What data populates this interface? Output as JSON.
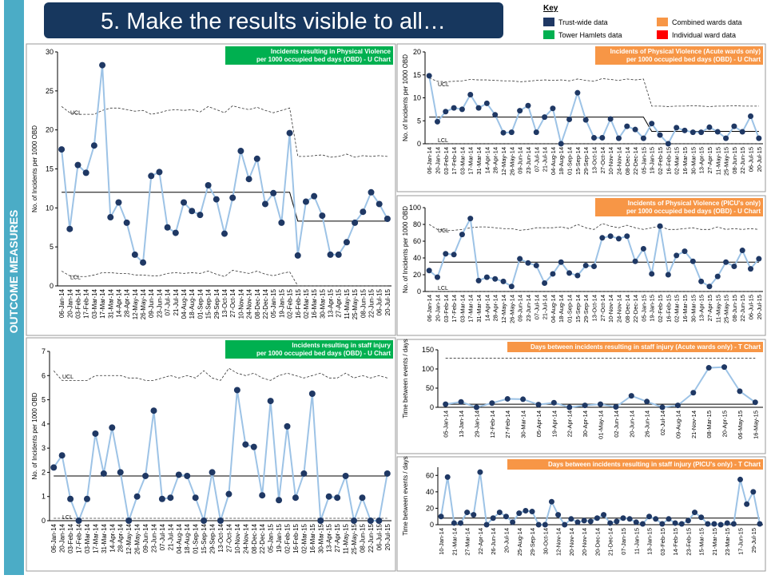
{
  "header": {
    "title": "5.  Make the results visible to all…",
    "side_label": "OUTCOME MEASURES"
  },
  "key": {
    "title": "Key",
    "items": [
      {
        "label": "Trust-wide data",
        "color": "#1f3864"
      },
      {
        "label": "Tower Hamlets data",
        "color": "#00b050"
      },
      {
        "label": "Combined wards data",
        "color": "#f79646"
      },
      {
        "label": "Individual ward data",
        "color": "#ff0000"
      }
    ]
  },
  "chart_data": [
    {
      "type": "line",
      "title": [
        "Incidents resulting in Physical Violence",
        "per 1000 occupied bed days (OBD) - U Chart"
      ],
      "title_color": "#00b050",
      "ylabel": "No. of Incidents per 1000 OBD",
      "line_color": "#9dc3e6",
      "marker_color": "#1f3864",
      "ucl_label": "UCL",
      "lcl_label": "LCL",
      "categories": [
        "06-Jan-14",
        "20-Jan-14",
        "03-Feb-14",
        "17-Feb-14",
        "03-Mar-14",
        "17-Mar-14",
        "31-Mar-14",
        "14-Apr-14",
        "28-Apr-14",
        "12-May-14",
        "26-May-14",
        "09-Jun-14",
        "23-Jun-14",
        "07-Jul-14",
        "21-Jul-14",
        "04-Aug-14",
        "18-Aug-14",
        "01-Sep-14",
        "15-Sep-14",
        "29-Sep-14",
        "13-Oct-14",
        "27-Oct-14",
        "10-Nov-14",
        "24-Nov-14",
        "08-Dec-14",
        "22-Dec-14",
        "05-Jan-15",
        "19-Jan-15",
        "02-Feb-15",
        "16-Feb-15",
        "02-Mar-15",
        "16-Mar-15",
        "30-Mar-15",
        "13-Apr-15",
        "27-Apr-15",
        "11-May-15",
        "25-May-15",
        "08-Jun-15",
        "22-Jun-15",
        "06-Jul-15",
        "20-Jul-15"
      ],
      "values": [
        17.5,
        7.3,
        15.5,
        14.5,
        18,
        28.3,
        8.8,
        10.7,
        8.1,
        4,
        3,
        14.1,
        14.6,
        7.5,
        6.8,
        10.7,
        9.6,
        9.1,
        12.9,
        11.1,
        6.7,
        11.3,
        17.3,
        13.7,
        16.3,
        10.5,
        11.9,
        8.1,
        19.6,
        3.9,
        10.8,
        11.5,
        9,
        4,
        4,
        5.6,
        8.1,
        9.5,
        12,
        10.5,
        8.6
      ],
      "center": [
        12,
        12,
        12,
        12,
        12,
        12,
        12,
        12,
        12,
        12,
        12,
        12,
        12,
        12,
        12,
        12,
        12,
        12,
        12,
        12,
        12,
        12,
        12,
        12,
        12,
        12,
        12,
        12,
        12,
        8.3,
        8.3,
        8.3,
        8.3,
        8.3,
        8.3,
        8.3,
        8.3,
        8.3,
        8.3,
        8.3,
        8.3
      ],
      "ucl": [
        23,
        22.2,
        22,
        22,
        22,
        22.5,
        22.8,
        22.8,
        22.6,
        22.4,
        22.5,
        22,
        22.2,
        22.5,
        22.6,
        22.5,
        22.6,
        22.3,
        23,
        22.6,
        22.2,
        23.1,
        22.8,
        22.6,
        22.9,
        22.5,
        22.2,
        22.5,
        22.8,
        16.6,
        16.6,
        16.7,
        16.8,
        16.5,
        16.6,
        16.9,
        16.5,
        16.7,
        16.6,
        16.7,
        16.6
      ],
      "lcl": [
        1.9,
        1.3,
        1.2,
        1.2,
        1.4,
        1.7,
        1.7,
        1.6,
        1.6,
        1.4,
        1.4,
        1.3,
        1.3,
        1.6,
        1.7,
        1.6,
        1.7,
        1.6,
        1.9,
        1.5,
        1.2,
        2,
        1.8,
        1.6,
        1.9,
        1.5,
        1.3,
        1.6,
        1.8,
        0,
        0,
        0,
        0,
        0,
        0,
        0,
        0,
        0,
        0,
        0,
        0
      ],
      "ylim": [
        0,
        30
      ],
      "yticks": [
        0,
        5,
        10,
        15,
        20,
        25,
        30
      ]
    },
    {
      "type": "line",
      "title": [
        "Incidents of Physical Violence (Acute wards only)",
        "per 1000 occupied bed days (OBD) - U Chart"
      ],
      "title_color": "#f79646",
      "ylabel": "No. of Incidents per 1000 OBD",
      "line_color": "#9dc3e6",
      "marker_color": "#1f3864",
      "ucl_label": "UCL",
      "lcl_label": "LCL",
      "categories": [
        "06-Jan-14",
        "20-Jan-14",
        "03-Feb-14",
        "17-Feb-14",
        "03-Mar-14",
        "17-Mar-14",
        "31-Mar-14",
        "14-Apr-14",
        "28-Apr-14",
        "12-May-14",
        "26-May-14",
        "09-Jun-14",
        "23-Jun-14",
        "07-Jul-14",
        "21-Jul-14",
        "04-Aug-14",
        "18-Aug-14",
        "01-Sep-14",
        "15-Sep-14",
        "29-Sep-14",
        "13-Oct-14",
        "27-Oct-14",
        "10-Nov-14",
        "24-Nov-14",
        "08-Dec-14",
        "22-Dec-14",
        "05-Jan-15",
        "19-Jan-15",
        "02-Feb-15",
        "16-Feb-15",
        "02-Mar-15",
        "16-Mar-15",
        "30-Mar-15",
        "13-Apr-15",
        "27-Apr-15",
        "11-May-15",
        "25-May-15",
        "08-Jun-15",
        "22-Jun-15",
        "06-Jul-15",
        "20-Jul-15"
      ],
      "values": [
        14.8,
        4.8,
        7,
        7.8,
        7.5,
        10.7,
        7.8,
        8.8,
        6.3,
        2.4,
        2.5,
        7.2,
        8.3,
        2.5,
        5.8,
        7.7,
        0,
        5.3,
        11.1,
        5.2,
        1.3,
        1.3,
        5.4,
        1.2,
        3.8,
        3.1,
        1.2,
        4.4,
        1.9,
        0,
        3.5,
        2.9,
        2.5,
        2.5,
        3.6,
        2.6,
        1.2,
        3.8,
        2.6,
        6,
        1.2
      ],
      "center": [
        5.8,
        5.8,
        5.8,
        5.8,
        5.8,
        5.8,
        5.8,
        5.8,
        5.8,
        5.8,
        5.8,
        5.8,
        5.8,
        5.8,
        5.8,
        5.8,
        5.8,
        5.8,
        5.8,
        5.8,
        5.8,
        5.8,
        5.8,
        5.8,
        5.8,
        5.8,
        5.8,
        2.7,
        2.7,
        2.7,
        2.7,
        2.7,
        2.7,
        2.7,
        2.7,
        2.7,
        2.7,
        2.7,
        2.7,
        2.7,
        2.7
      ],
      "ucl": [
        14.3,
        13.6,
        13.5,
        13.6,
        13.7,
        14,
        13.9,
        13.9,
        13.8,
        13.7,
        13.7,
        13.5,
        13.6,
        13.8,
        13.9,
        13.8,
        13.9,
        13.7,
        14.1,
        13.8,
        13.6,
        14.2,
        14,
        13.8,
        14.1,
        13.9,
        14.1,
        8.2,
        8.2,
        8.1,
        8.2,
        8.2,
        8.3,
        8.2,
        8.1,
        8.2,
        8.2,
        8.3,
        8.2,
        8.2,
        8.2
      ],
      "lcl": [
        0,
        0,
        0,
        0,
        0,
        0,
        0,
        0,
        0,
        0,
        0,
        0,
        0,
        0,
        0,
        0,
        0,
        0,
        0,
        0,
        0,
        0,
        0,
        0,
        0,
        0,
        0,
        0,
        0,
        0,
        0,
        0,
        0,
        0,
        0,
        0,
        0,
        0,
        0,
        0,
        0
      ],
      "ylim": [
        0,
        20
      ],
      "yticks": [
        0,
        5,
        10,
        15,
        20
      ]
    },
    {
      "type": "line",
      "title": [
        "Incidents of Physical Violence (PICU's only)",
        "per 1000 occupied bed days (OBD) - U Chart"
      ],
      "title_color": "#f79646",
      "ylabel": "No. of Incidents per 1000 OBD",
      "line_color": "#9dc3e6",
      "marker_color": "#1f3864",
      "ucl_label": "UCL",
      "lcl_label": "LCL",
      "categories": [
        "06-Jan-14",
        "20-Jan-14",
        "03-Feb-14",
        "17-Feb-14",
        "03-Mar-14",
        "17-Mar-14",
        "31-Mar-14",
        "14-Apr-14",
        "28-Apr-14",
        "12-May-14",
        "26-May-14",
        "09-Jun-14",
        "23-Jun-14",
        "07-Jul-14",
        "21-Jul-14",
        "04-Aug-14",
        "18-Aug-14",
        "01-Sep-14",
        "15-Sep-14",
        "29-Sep-14",
        "13-Oct-14",
        "27-Oct-14",
        "10-Nov-14",
        "24-Nov-14",
        "08-Dec-14",
        "22-Dec-14",
        "05-Jan-15",
        "19-Jan-15",
        "02-Feb-15",
        "16-Feb-15",
        "02-Mar-15",
        "16-Mar-15",
        "30-Mar-15",
        "13-Apr-15",
        "27-Apr-15",
        "11-May-15",
        "25-May-15",
        "08-Jun-15",
        "22-Jun-15",
        "06-Jul-15",
        "20-Jul-15"
      ],
      "values": [
        25,
        17,
        45,
        44,
        68,
        87,
        13,
        17,
        15,
        12,
        6,
        39,
        34,
        31,
        10,
        21,
        35,
        22,
        19,
        31,
        30,
        64,
        66,
        63,
        66,
        36,
        51,
        21,
        78,
        20,
        43,
        48,
        36,
        12,
        6,
        18,
        35,
        30,
        49,
        27,
        39
      ],
      "center": [
        35,
        35,
        35,
        35,
        35,
        35,
        35,
        35,
        35,
        35,
        35,
        35,
        35,
        35,
        35,
        35,
        35,
        35,
        35,
        35,
        35,
        35,
        35,
        35,
        35,
        35,
        35,
        35,
        35,
        35,
        35,
        35,
        35,
        35,
        35,
        35,
        35,
        35,
        35,
        35,
        35
      ],
      "ucl": [
        80,
        74,
        73,
        73,
        74,
        76,
        77,
        77,
        76,
        75,
        75,
        73,
        74,
        76,
        76,
        76,
        77,
        75,
        80,
        76,
        74,
        81,
        78,
        76,
        79,
        76,
        74,
        76,
        78,
        74,
        74,
        75,
        76,
        74,
        74,
        77,
        74,
        75,
        74,
        75,
        74
      ],
      "lcl": [
        0,
        0,
        0,
        0,
        0,
        0,
        0,
        0,
        0,
        0,
        0,
        0,
        0,
        0,
        0,
        0,
        0,
        0,
        0,
        0,
        0,
        0,
        0,
        0,
        0,
        0,
        0,
        0,
        0,
        0,
        0,
        0,
        0,
        0,
        0,
        0,
        0,
        0,
        0,
        0,
        0
      ],
      "ylim": [
        0,
        100
      ],
      "yticks": [
        0,
        20,
        40,
        60,
        80,
        100
      ]
    },
    {
      "type": "line",
      "title": [
        "Incidents resulting in staff injury",
        "per 1000 occupied bed days (OBD) - U Chart"
      ],
      "title_color": "#00b050",
      "ylabel": "No. of Incidents per 1000 OBD",
      "line_color": "#9dc3e6",
      "marker_color": "#1f3864",
      "ucl_label": "UCL",
      "lcl_label": "LCL",
      "categories": [
        "06-Jan-14",
        "20-Jan-14",
        "03-Feb-14",
        "17-Feb-14",
        "03-Mar-14",
        "17-Mar-14",
        "31-Mar-14",
        "14-Apr-14",
        "28-Apr-14",
        "12-May-14",
        "26-May-14",
        "09-Jun-14",
        "23-Jun-14",
        "07-Jul-14",
        "21-Jul-14",
        "04-Aug-14",
        "18-Aug-14",
        "01-Sep-14",
        "15-Sep-14",
        "29-Sep-14",
        "13-Oct-14",
        "27-Oct-14",
        "10-Nov-14",
        "24-Nov-14",
        "08-Dec-14",
        "22-Dec-14",
        "05-Jan-15",
        "19-Jan-15",
        "02-Feb-15",
        "16-Feb-15",
        "02-Mar-15",
        "16-Mar-15",
        "30-Mar-15",
        "13-Apr-15",
        "27-Apr-15",
        "11-May-15",
        "25-May-15",
        "08-Jun-15",
        "22-Jun-15",
        "06-Jul-15",
        "20-Jul-15"
      ],
      "values": [
        2.2,
        2.7,
        0.9,
        0,
        0.9,
        3.6,
        1.95,
        3.85,
        2,
        0,
        1,
        1.85,
        4.55,
        0.9,
        0.95,
        1.9,
        1.85,
        0.95,
        0,
        2,
        0,
        1.1,
        5.4,
        3.15,
        3.05,
        1.05,
        4.95,
        0.85,
        3.9,
        0.95,
        1.95,
        5.25,
        0,
        1,
        0.95,
        1.85,
        0,
        0.95,
        0,
        0,
        1.95
      ],
      "center": [
        1.85,
        1.85,
        1.85,
        1.85,
        1.85,
        1.85,
        1.85,
        1.85,
        1.85,
        1.85,
        1.85,
        1.85,
        1.85,
        1.85,
        1.85,
        1.85,
        1.85,
        1.85,
        1.85,
        1.85,
        1.85,
        1.85,
        1.85,
        1.85,
        1.85,
        1.85,
        1.85,
        1.85,
        1.85,
        1.85,
        1.85,
        1.85,
        1.85,
        1.85,
        1.85,
        1.85,
        1.85,
        1.85,
        1.85,
        1.85,
        1.85
      ],
      "ucl": [
        6.2,
        5.8,
        5.8,
        5.8,
        5.8,
        6,
        6,
        6,
        6,
        5.9,
        5.9,
        5.8,
        5.8,
        5.9,
        6,
        5.9,
        6,
        5.9,
        6.2,
        5.9,
        5.8,
        6.3,
        6.1,
        6,
        6.1,
        5.9,
        5.8,
        6,
        6.1,
        6,
        5.9,
        6,
        6.1,
        5.9,
        5.9,
        6.1,
        5.9,
        6,
        5.9,
        6,
        5.9
      ],
      "lcl": [
        0.1,
        0.1,
        0.1,
        0.1,
        0.1,
        0.1,
        0.1,
        0.1,
        0.1,
        0.1,
        0.1,
        0.1,
        0.1,
        0.1,
        0.1,
        0.1,
        0.1,
        0.1,
        0.1,
        0.1,
        0.1,
        0.1,
        0.1,
        0.1,
        0.1,
        0.1,
        0.1,
        0.1,
        0.1,
        0.1,
        0.1,
        0.1,
        0.1,
        0.1,
        0.1,
        0.1,
        0.1,
        0.1,
        0.1,
        0.1,
        0.1
      ],
      "ylim": [
        0,
        7
      ],
      "yticks": [
        0,
        1,
        2,
        3,
        4,
        5,
        6,
        7
      ]
    },
    {
      "type": "line",
      "title": [
        "Days between incidents resulting in staff injury (Acute wards only) - T Chart"
      ],
      "title_color": "#f79646",
      "ylabel": "Time between events / days",
      "line_color": "#9dc3e6",
      "marker_color": "#1f3864",
      "categories": [
        "05-Jan-14",
        "13-Jan-14",
        "29-Jan-14",
        "12-Feb-14",
        "27-Feb-14",
        "30-Mar-14",
        "05-Apr-14",
        "19-Apr-14",
        "22-Apr-14",
        "30-Apr-14",
        "01-May-14",
        "02-Jun-14",
        "20-Jun-14",
        "26-Jun-14",
        "02-Jul-14",
        "09-Aug-14",
        "21-Nov-14",
        "08-Mar-15",
        "20-Apr-15",
        "06-May-15",
        "16-May-15"
      ],
      "values": [
        8,
        14,
        0,
        11,
        22,
        21,
        7,
        12,
        0,
        5,
        8,
        1,
        30,
        15,
        0,
        5,
        38,
        103,
        105,
        42,
        13
      ],
      "center": [
        8,
        8,
        8,
        8,
        8,
        8,
        8,
        8,
        8,
        8,
        8,
        8,
        8,
        8,
        8,
        8,
        8,
        8,
        8,
        8,
        8
      ],
      "ucl": [
        128,
        128,
        128,
        128,
        128,
        128,
        128,
        128,
        128,
        128,
        128,
        128,
        128,
        128,
        128,
        128,
        128,
        128,
        128,
        128,
        128
      ],
      "ylim": [
        0,
        150
      ],
      "yticks": [
        0,
        50,
        100,
        150
      ]
    },
    {
      "type": "line",
      "title": [
        "Days between incidents resulting in staff injury (PICU's only) - T Chart"
      ],
      "title_color": "#f79646",
      "ylabel": "Time between events / days",
      "line_color": "#9dc3e6",
      "marker_color": "#1f3864",
      "categories": [
        "10-Jan-14",
        null,
        "21-Mar-14",
        null,
        "27-Mar-14",
        null,
        "22-Apr-14",
        null,
        "26-Jun-14",
        null,
        "20-Jul-14",
        null,
        "25-Aug-14",
        null,
        "29-Sep-14",
        null,
        "30-Oct-14",
        null,
        "12-Nov-14",
        null,
        "20-Nov-14",
        null,
        "20-Nov-14",
        null,
        "20-Dec-14",
        null,
        "21-Dec-14",
        null,
        "07-Jan-15",
        null,
        "11-Jan-15",
        null,
        "13-Jan-15",
        null,
        "03-Feb-15",
        null,
        "14-Feb-15",
        null,
        "23-Feb-15",
        null,
        "15-Mar-15",
        null,
        "21-Mar-15",
        null,
        "23-Mar-15",
        null,
        "17-Jun-15",
        null,
        "29-Jul-15",
        null
      ],
      "values": [
        10,
        58,
        2,
        2,
        15,
        12,
        64,
        0,
        8,
        15,
        10,
        3,
        14,
        17,
        16,
        0,
        0,
        28,
        12,
        0,
        7,
        3,
        5,
        4,
        8,
        12,
        2,
        4,
        8,
        7,
        3,
        1,
        10,
        7,
        1,
        7,
        2,
        1,
        5,
        15,
        9,
        1,
        1,
        0,
        2,
        1,
        55,
        25,
        40,
        1
      ],
      "center": [
        8,
        8,
        8,
        8,
        8,
        8,
        8,
        8,
        8,
        8,
        8,
        8,
        8,
        8,
        8,
        8,
        8,
        8,
        8,
        8,
        8,
        8,
        8,
        8,
        8,
        8,
        8,
        8,
        8,
        8,
        8,
        8,
        8,
        8,
        8,
        8,
        8,
        8,
        8,
        8,
        8,
        8,
        8,
        8,
        8,
        8,
        8,
        8,
        8,
        8
      ],
      "ylim": [
        0,
        70
      ],
      "yticks": [
        0,
        20,
        40,
        60
      ]
    }
  ]
}
